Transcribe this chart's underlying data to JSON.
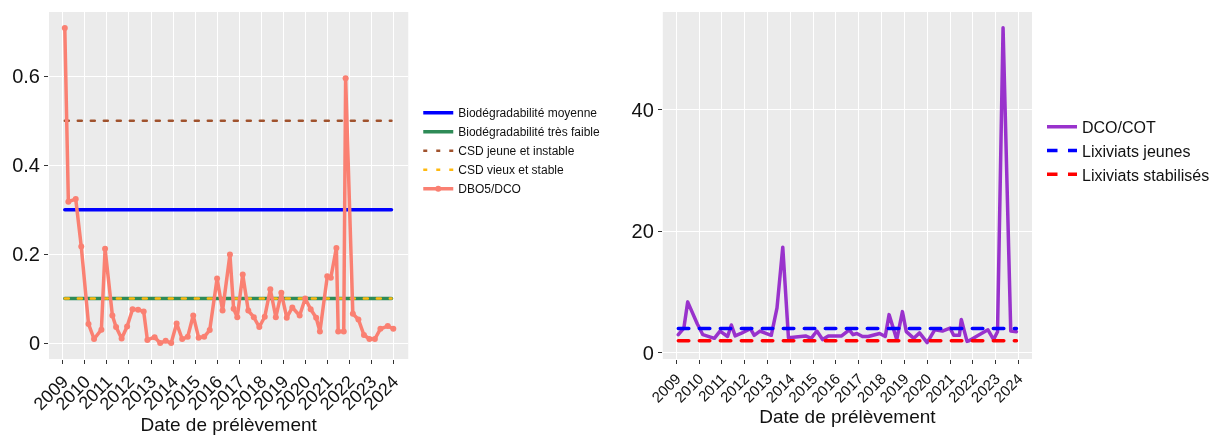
{
  "chart_data": [
    {
      "type": "line",
      "xlabel": "Date de prélèvement",
      "xlim": [
        "2008-05-15",
        "2024-09-05"
      ],
      "xticks": [
        "2009",
        "2010",
        "2011",
        "2012",
        "2013",
        "2014",
        "2015",
        "2016",
        "2017",
        "2018",
        "2019",
        "2020",
        "2021",
        "2022",
        "2023",
        "2024"
      ],
      "ylim": [
        -0.036,
        0.745
      ],
      "yticks": [
        0,
        {
          "value": 0.2,
          "label": "0.2"
        },
        {
          "value": 0.4,
          "label": "0.4"
        },
        {
          "value": 0.6,
          "label": "0.6"
        }
      ],
      "grid": true,
      "legend": "right",
      "series": [
        {
          "name": "Biodégradabilité moyenne",
          "color": "#0000ff",
          "line_style": "solid",
          "x": [
            "2009-02",
            "2023-12"
          ],
          "values": [
            0.3,
            0.3
          ]
        },
        {
          "name": "Biodégradabilité très faible",
          "color": "#2e8b57",
          "line_style": "solid",
          "x": [
            "2009-02",
            "2023-12"
          ],
          "values": [
            0.1,
            0.1
          ]
        },
        {
          "name": "CSD jeune et instable",
          "color": "#a0522d",
          "line_style": "dotted",
          "x": [
            "2009-02",
            "2023-12"
          ],
          "values": [
            0.5,
            0.5
          ]
        },
        {
          "name": "CSD vieux et stable",
          "color": "#ffb90f",
          "line_style": "dotted",
          "x": [
            "2009-02",
            "2023-12"
          ],
          "values": [
            0.1,
            0.1
          ]
        },
        {
          "name": "DBO5/DCO",
          "color": "#fa8072",
          "line_style": "solid",
          "marker": "circle",
          "x": [
            "2009-02",
            "2009-04",
            "2009-08",
            "2009-11",
            "2010-03",
            "2010-06",
            "2010-10",
            "2010-12",
            "2011-04",
            "2011-06",
            "2011-09",
            "2011-12",
            "2012-03",
            "2012-06",
            "2012-09",
            "2012-11",
            "2013-03",
            "2013-06",
            "2013-09",
            "2013-12",
            "2014-03",
            "2014-06",
            "2014-09",
            "2014-12",
            "2015-03",
            "2015-06",
            "2015-09",
            "2016-01",
            "2016-04",
            "2016-08",
            "2016-10",
            "2016-12",
            "2017-03",
            "2017-06",
            "2017-09",
            "2017-12",
            "2018-03",
            "2018-06",
            "2018-09",
            "2018-12",
            "2019-03",
            "2019-06",
            "2019-10",
            "2020-01",
            "2020-04",
            "2020-07",
            "2020-09",
            "2021-01",
            "2021-03",
            "2021-06",
            "2021-07",
            "2021-10",
            "2021-11",
            "2022-03",
            "2022-06",
            "2022-09",
            "2022-12",
            "2023-03",
            "2023-06",
            "2023-10",
            "2024-01"
          ],
          "values": [
            0.709,
            0.318,
            0.324,
            0.217,
            0.043,
            0.009,
            0.03,
            0.212,
            0.062,
            0.036,
            0.01,
            0.037,
            0.076,
            0.075,
            0.071,
            0.007,
            0.013,
            0.0,
            0.005,
            0.0,
            0.044,
            0.009,
            0.014,
            0.062,
            0.012,
            0.014,
            0.029,
            0.145,
            0.073,
            0.199,
            0.077,
            0.058,
            0.154,
            0.073,
            0.058,
            0.036,
            0.059,
            0.121,
            0.058,
            0.113,
            0.057,
            0.08,
            0.062,
            0.1,
            0.076,
            0.057,
            0.026,
            0.15,
            0.147,
            0.214,
            0.026,
            0.026,
            0.596,
            0.066,
            0.053,
            0.018,
            0.009,
            0.009,
            0.032,
            0.038,
            0.032
          ]
        }
      ]
    },
    {
      "type": "line",
      "xlabel": "Date de prélèvement",
      "xlim": [
        "2008-05-28",
        "2024-08-07"
      ],
      "xticks": [
        "2009",
        "2010",
        "2011",
        "2012",
        "2013",
        "2014",
        "2015",
        "2016",
        "2017",
        "2018",
        "2019",
        "2020",
        "2021",
        "2022",
        "2023",
        "2024"
      ],
      "ylim": [
        -1.0,
        56.1
      ],
      "yticks": [
        0,
        20,
        40
      ],
      "grid": true,
      "legend": "right",
      "series": [
        {
          "name": "DCO/COT",
          "color": "#9932cc",
          "line_style": "solid",
          "x": [
            "2009-02",
            "2009-05",
            "2009-07",
            "2009-12",
            "2010-03",
            "2010-09",
            "2010-12",
            "2011-04",
            "2011-06",
            "2011-08",
            "2011-11",
            "2012-04",
            "2012-06",
            "2012-09",
            "2013-03",
            "2013-06",
            "2013-09",
            "2013-12",
            "2014-09",
            "2014-12",
            "2015-03",
            "2015-06",
            "2015-09",
            "2016-04",
            "2016-08",
            "2016-10",
            "2016-12",
            "2017-03",
            "2017-06",
            "2017-12",
            "2018-03",
            "2018-05",
            "2018-09",
            "2018-12",
            "2019-02",
            "2019-06",
            "2019-09",
            "2020-01",
            "2020-05",
            "2020-09",
            "2021-01",
            "2021-03",
            "2021-06",
            "2021-07",
            "2021-10",
            "2021-11",
            "2022-04",
            "2022-09",
            "2022-12",
            "2023-02",
            "2023-05",
            "2023-09",
            "2023-12"
          ],
          "values": [
            3.0,
            4.1,
            8.4,
            4.8,
            3.0,
            2.4,
            3.6,
            2.7,
            4.6,
            2.8,
            3.2,
            4.0,
            2.9,
            3.6,
            2.9,
            7.4,
            17.4,
            2.5,
            2.8,
            2.4,
            3.6,
            2.2,
            2.8,
            2.8,
            3.8,
            3.0,
            3.2,
            2.7,
            2.7,
            3.2,
            2.7,
            6.3,
            2.2,
            6.8,
            3.5,
            2.4,
            3.3,
            1.7,
            3.8,
            3.6,
            4.1,
            2.9,
            2.9,
            5.5,
            1.9,
            2.0,
            2.9,
            3.8,
            2.2,
            3.5,
            53.5,
            3.6,
            3.5
          ]
        },
        {
          "name": "Lixiviats jeunes",
          "color": "#0000ff",
          "line_style": "dashed",
          "x": [
            "2009-02",
            "2023-12"
          ],
          "values": [
            4,
            4
          ]
        },
        {
          "name": "Lixiviats stabilisés",
          "color": "#ff0000",
          "line_style": "dashed",
          "x": [
            "2009-02",
            "2023-12"
          ],
          "values": [
            2,
            2
          ]
        }
      ]
    }
  ]
}
